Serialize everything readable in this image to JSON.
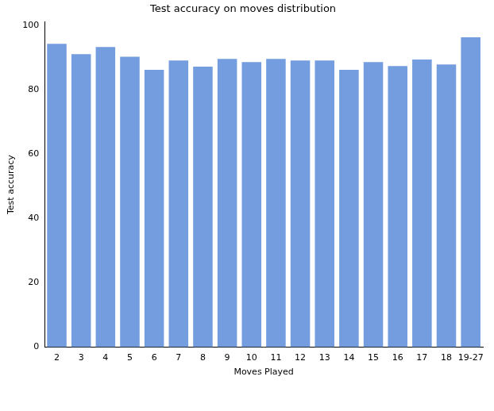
{
  "chart_data": {
    "type": "bar",
    "title": "Test accuracy on moves distribution",
    "x_label": "Moves Played",
    "y_label": "Test accuracy",
    "categories": [
      "2",
      "3",
      "4",
      "5",
      "6",
      "7",
      "8",
      "9",
      "10",
      "11",
      "12",
      "13",
      "14",
      "15",
      "16",
      "17",
      "18",
      "19-27"
    ],
    "values": [
      94.2,
      91.0,
      93.2,
      90.2,
      86.1,
      89.0,
      87.1,
      89.5,
      88.5,
      89.5,
      89.0,
      89.0,
      86.1,
      88.5,
      87.3,
      89.3,
      87.8,
      96.2
    ],
    "color": "#739ddf",
    "ylim": [
      0,
      101
    ],
    "yticks": [
      0,
      20,
      40,
      60,
      80,
      100
    ],
    "grid": false
  }
}
